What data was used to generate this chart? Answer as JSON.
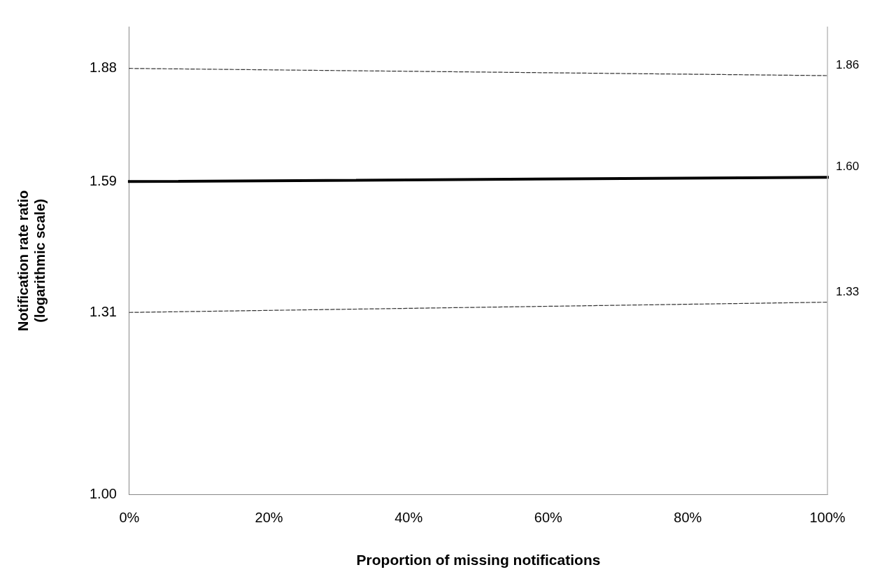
{
  "chart_data": {
    "type": "line",
    "xlabel": "Proportion of missing notifications",
    "ylabel": "Notification rate ratio\n(logarithmic scale)",
    "log": "y",
    "grid": false,
    "legend": false,
    "marker": "none",
    "xlim": [
      0,
      100
    ],
    "xticks": [
      {
        "value": 0,
        "label": "0%"
      },
      {
        "value": 20,
        "label": "20%"
      },
      {
        "value": 40,
        "label": "40%"
      },
      {
        "value": 60,
        "label": "60%"
      },
      {
        "value": 80,
        "label": "80%"
      },
      {
        "value": 100,
        "label": "100%"
      }
    ],
    "ylim": [
      1,
      2
    ],
    "yticks": [
      {
        "value": 1,
        "label": "1.00"
      },
      1.31,
      1.59,
      1.88
    ],
    "x": [
      0,
      100
    ],
    "series": [
      {
        "color": "#333333",
        "line_style": "dashed",
        "values": [
          1.88,
          1.86
        ],
        "value_labels": [
          null,
          "1.86"
        ]
      },
      {
        "color": "#000000",
        "line_style": "solid",
        "values": [
          1.59,
          1.6
        ],
        "value_labels": [
          null,
          "1.60"
        ]
      },
      {
        "color": "#333333",
        "line_style": "dashed",
        "values": [
          1.31,
          1.33
        ],
        "value_labels": [
          null,
          "1.33"
        ]
      }
    ]
  }
}
